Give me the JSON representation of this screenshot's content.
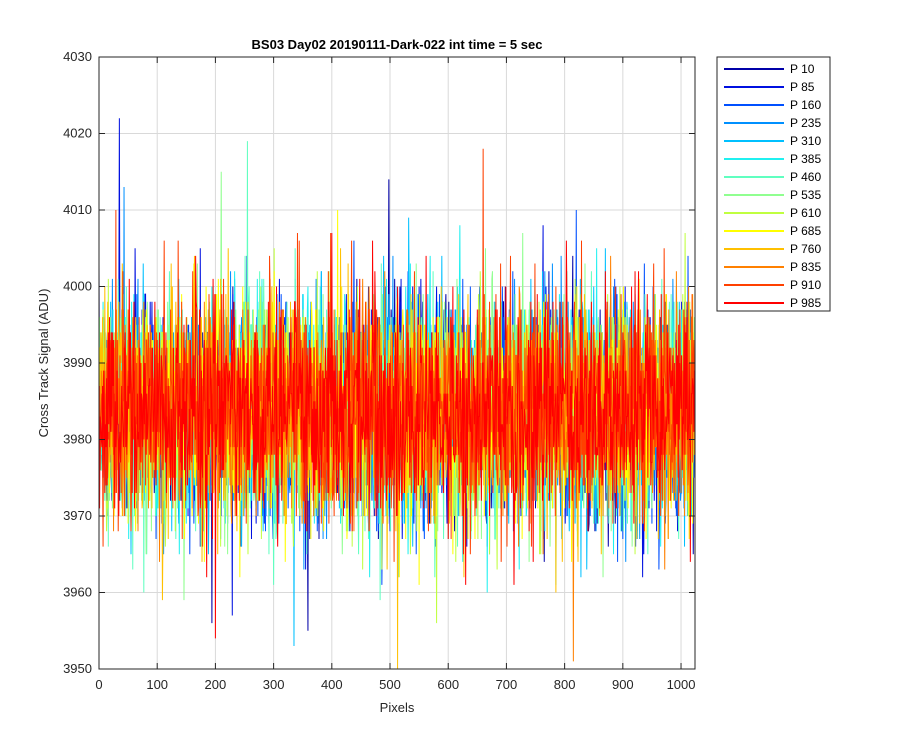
{
  "chart_data": {
    "type": "line",
    "title": "BS03 Day02 20190111-Dark-022 int time = 5 sec",
    "xlabel": "Pixels",
    "ylabel": "Cross Track Signal (ADU)",
    "xlim": [
      0,
      1024
    ],
    "ylim": [
      3950,
      4030
    ],
    "xticks": [
      0,
      100,
      200,
      300,
      400,
      500,
      600,
      700,
      800,
      900,
      1000
    ],
    "yticks": [
      3950,
      3960,
      3970,
      3980,
      3990,
      4000,
      4010,
      4020,
      4030
    ],
    "grid": true,
    "legend_position": "outside-right",
    "noise": {
      "mean": 3984,
      "std": 7,
      "n_pixels": 1024
    },
    "series": [
      {
        "name": "P 10",
        "color": "#0000A8",
        "peak_pixel": 498,
        "peak_value": 4014
      },
      {
        "name": "P 85",
        "color": "#0010E0",
        "peak_pixel": 35,
        "peak_value": 4022
      },
      {
        "name": "P 160",
        "color": "#0050FF",
        "peak_pixel": 820,
        "peak_value": 4010
      },
      {
        "name": "P 235",
        "color": "#0090FF",
        "peak_pixel": 43,
        "peak_value": 4013
      },
      {
        "name": "P 310",
        "color": "#00C0FF",
        "peak_pixel": 335,
        "peak_value": 3953
      },
      {
        "name": "P 385",
        "color": "#20F0F0",
        "peak_pixel": 620,
        "peak_value": 4008
      },
      {
        "name": "P 460",
        "color": "#60FFC0",
        "peak_pixel": 255,
        "peak_value": 4019
      },
      {
        "name": "P 535",
        "color": "#90FF90",
        "peak_pixel": 210,
        "peak_value": 4015
      },
      {
        "name": "P 610",
        "color": "#C0FF40",
        "peak_pixel": 580,
        "peak_value": 3956
      },
      {
        "name": "P 685",
        "color": "#FFFF00",
        "peak_pixel": 410,
        "peak_value": 4010
      },
      {
        "name": "P 760",
        "color": "#FFC000",
        "peak_pixel": 513,
        "peak_value": 3950
      },
      {
        "name": "P 835",
        "color": "#FF8000",
        "peak_pixel": 815,
        "peak_value": 3951
      },
      {
        "name": "P 910",
        "color": "#FF4000",
        "peak_pixel": 660,
        "peak_value": 4018
      },
      {
        "name": "P 985",
        "color": "#FF0000",
        "peak_pixel": 200,
        "peak_value": 3954
      }
    ]
  }
}
